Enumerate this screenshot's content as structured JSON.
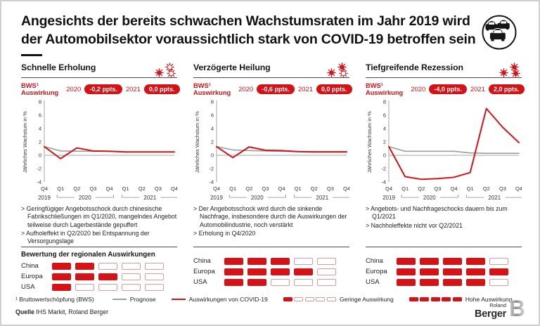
{
  "colors": {
    "red": "#d51317",
    "gray": "#9d9d9d",
    "dark": "#111111",
    "axis": "#a6a6a6"
  },
  "header": {
    "title_line1": "Angesichts der bereits schwachen Wachstumsraten im Jahr 2019 wird",
    "title_line2": "der Automobilsektor voraussichtlich stark von COVID-19 betroffen sein"
  },
  "segments_total": 5,
  "regional_title": "Bewertung der regionalen Auswirkungen",
  "panels": [
    {
      "title": "Schnelle Erholung",
      "virus_icons": [
        "outline",
        "filled",
        "outline"
      ],
      "bws_label": "BWS¹",
      "bws_label2": "Auswirkung",
      "years": [
        {
          "year": "2020",
          "value": "-0,2 ppts."
        },
        {
          "year": "2021",
          "value": "0,0 ppts."
        }
      ],
      "bullets": [
        "> Geringfügiger Angebotsschock durch chinesische Fabrikschließungen im Q1/2020, mangelndes Angebot teilweise durch Lagerbestände gepuffert",
        "> Aufholeffekt in Q2/2020 bei Entspannung der Versorgungslage"
      ],
      "regions": [
        {
          "name": "China",
          "filled_segments": 2
        },
        {
          "name": "Europa",
          "filled_segments": 3
        },
        {
          "name": "USA",
          "filled_segments": 1
        }
      ]
    },
    {
      "title": "Verzögerte Heilung",
      "virus_icons": [
        "filled",
        "filled",
        "outline"
      ],
      "bws_label": "BWS¹",
      "bws_label2": "Auswirkung",
      "years": [
        {
          "year": "2020",
          "value": "-0,6 ppts."
        },
        {
          "year": "2021",
          "value": "0,0 ppts."
        }
      ],
      "bullets": [
        "> Der Angebotsschock wird durch die sinkende Nachfrage, insbesondere durch die Auswirkungen der Automobilindustrie, noch verstärkt",
        "> Erholung in Q4/2020"
      ],
      "regions": [
        {
          "name": "China",
          "filled_segments": 3
        },
        {
          "name": "Europa",
          "filled_segments": 4
        },
        {
          "name": "USA",
          "filled_segments": 2
        }
      ]
    },
    {
      "title": "Tiefgreifende Rezession",
      "virus_icons": [
        "filled",
        "filled",
        "filled"
      ],
      "bws_label": "BWS¹",
      "bws_label2": "Auswirkung",
      "years": [
        {
          "year": "2020",
          "value": "-4,0 ppts."
        },
        {
          "year": "2021",
          "value": "2,0 ppts."
        }
      ],
      "bullets": [
        "> Angebots- und Nachfrageschocks dauern bis zum Q1/2021",
        "> Nachholeffekte nicht vor Q2/2021"
      ],
      "regions": [
        {
          "name": "China",
          "filled_segments": 4
        },
        {
          "name": "Europa",
          "filled_segments": 5
        },
        {
          "name": "USA",
          "filled_segments": 4
        }
      ]
    }
  ],
  "chart_data": [
    {
      "type": "line",
      "title": "Schnelle Erholung",
      "ylabel": "Jährliches Wachstum in %",
      "ylim": [
        -4,
        8
      ],
      "yticks": [
        8,
        6,
        4,
        2,
        0,
        -2,
        -4
      ],
      "categories": [
        "Q4",
        "Q1",
        "Q2",
        "Q3",
        "Q4",
        "Q1",
        "Q2",
        "Q3",
        "Q4"
      ],
      "year_groups": [
        {
          "label": "2019",
          "from": 0,
          "to": 0
        },
        {
          "label": "2020",
          "from": 1,
          "to": 4
        },
        {
          "label": "2021",
          "from": 5,
          "to": 8
        }
      ],
      "series": [
        {
          "name": "Prognose",
          "color_key": "gray",
          "values": [
            1.3,
            0.65,
            0.6,
            0.6,
            0.6,
            0.5,
            0.5,
            0.5,
            0.5
          ]
        },
        {
          "name": "Auswirkungen von COVID-19",
          "color_key": "red",
          "values": [
            1.3,
            -0.5,
            1.1,
            0.65,
            0.6,
            0.5,
            0.5,
            0.5,
            0.5
          ]
        }
      ]
    },
    {
      "type": "line",
      "title": "Verzögerte Heilung",
      "ylabel": "Jährliches Wachstum in %",
      "ylim": [
        -4,
        8
      ],
      "yticks": [
        8,
        6,
        4,
        2,
        0,
        -2,
        -4
      ],
      "categories": [
        "Q4",
        "Q1",
        "Q2",
        "Q3",
        "Q4",
        "Q1",
        "Q2",
        "Q3",
        "Q4"
      ],
      "year_groups": [
        {
          "label": "2019",
          "from": 0,
          "to": 0
        },
        {
          "label": "2020",
          "from": 1,
          "to": 4
        },
        {
          "label": "2021",
          "from": 5,
          "to": 8
        }
      ],
      "series": [
        {
          "name": "Prognose",
          "color_key": "gray",
          "values": [
            1.3,
            0.8,
            0.7,
            0.65,
            0.6,
            0.55,
            0.55,
            0.55,
            0.55
          ]
        },
        {
          "name": "Auswirkungen von COVID-19",
          "color_key": "red",
          "values": [
            1.3,
            -0.35,
            1.25,
            0.75,
            0.7,
            0.55,
            0.5,
            0.5,
            0.5
          ]
        }
      ]
    },
    {
      "type": "line",
      "title": "Tiefgreifende Rezession",
      "ylabel": "Jährliches Wachstum in %",
      "ylim": [
        -4,
        8
      ],
      "yticks": [
        8,
        6,
        4,
        2,
        0,
        -2,
        -4
      ],
      "categories": [
        "Q4",
        "Q1",
        "Q2",
        "Q3",
        "Q4",
        "Q1",
        "Q2",
        "Q3",
        "Q4"
      ],
      "year_groups": [
        {
          "label": "2019",
          "from": 0,
          "to": 0
        },
        {
          "label": "2020",
          "from": 1,
          "to": 4
        },
        {
          "label": "2021",
          "from": 5,
          "to": 8
        }
      ],
      "series": [
        {
          "name": "Prognose",
          "color_key": "gray",
          "values": [
            1.3,
            0.6,
            0.6,
            0.6,
            0.6,
            0.35,
            0.3,
            0.3,
            0.3
          ]
        },
        {
          "name": "Auswirkungen von COVID-19",
          "color_key": "red",
          "values": [
            1.3,
            -3.2,
            -3.6,
            -3.5,
            -3.3,
            -2.6,
            7.0,
            4.2,
            1.9
          ]
        }
      ]
    }
  ],
  "footer": {
    "footnote": "¹ Bruttowertschöpfung (BWS)",
    "legend_prognose": "Prognose",
    "legend_covid": "Auswirkungen von COVID-19",
    "legend_low": {
      "label": "Geringe Auswirkung",
      "filled": 1,
      "total": 5
    },
    "legend_high": {
      "label": "Hohe Auswirkung",
      "filled": 5,
      "total": 5
    },
    "source_prefix": "Quelle",
    "source_rest": "IHS Markit, Roland Berger",
    "logo_line1": "Roland",
    "logo_line2": "Berger"
  }
}
